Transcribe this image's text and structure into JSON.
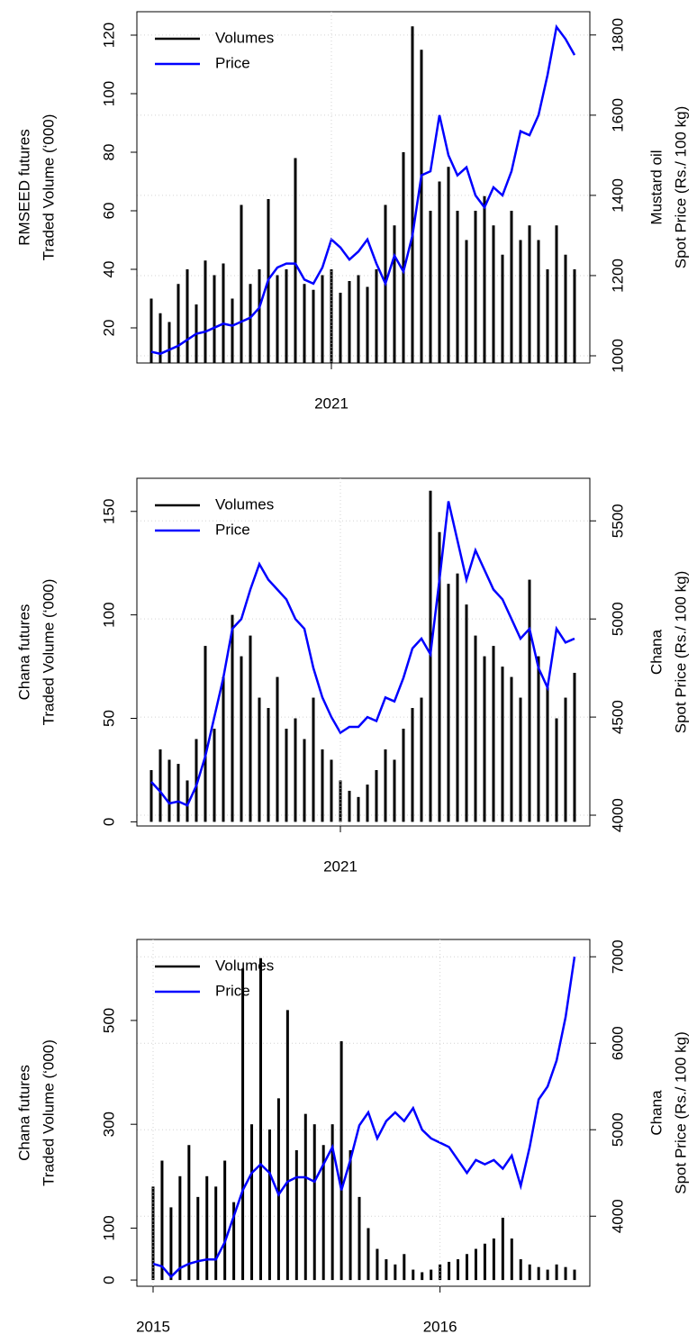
{
  "chart_data": [
    {
      "type": "bar-line",
      "y_label": [
        "RMSEED futures",
        "Traded Volume (‘000)"
      ],
      "y2_label": [
        "Mustard oil",
        "Spot Price (Rs./ 100 kg)"
      ],
      "categories": [
        null,
        null,
        null,
        null,
        null,
        null,
        null,
        null,
        null,
        null,
        null,
        null,
        null,
        null,
        null,
        null,
        null,
        null,
        null,
        null,
        "2021",
        null,
        null,
        null,
        null,
        null,
        null,
        null,
        null,
        null,
        null,
        null,
        null,
        null,
        null,
        null,
        null,
        null,
        null,
        null,
        null,
        null,
        null,
        null,
        null,
        null,
        null,
        null
      ],
      "series": [
        {
          "name": "Volumes",
          "color": "#000000",
          "mark": "bar",
          "values": [
            30,
            25,
            22,
            35,
            40,
            28,
            43,
            38,
            42,
            30,
            62,
            35,
            40,
            64,
            38,
            40,
            78,
            35,
            33,
            38,
            40,
            32,
            36,
            38,
            34,
            40,
            62,
            55,
            80,
            123,
            115,
            60,
            70,
            75,
            60,
            50,
            60,
            65,
            55,
            45,
            60,
            50,
            55,
            50,
            40,
            55,
            45,
            40
          ]
        },
        {
          "name": "Price",
          "color": "#0000ff",
          "mark": "line",
          "axis": "y2",
          "values": [
            1010,
            1005,
            1015,
            1025,
            1040,
            1055,
            1060,
            1070,
            1080,
            1075,
            1085,
            1095,
            1120,
            1190,
            1220,
            1230,
            1230,
            1190,
            1180,
            1220,
            1290,
            1270,
            1240,
            1260,
            1290,
            1230,
            1180,
            1250,
            1210,
            1300,
            1450,
            1460,
            1600,
            1500,
            1450,
            1470,
            1400,
            1370,
            1420,
            1400,
            1460,
            1560,
            1550,
            1600,
            1700,
            1820,
            1790,
            1750
          ]
        }
      ],
      "ylim": [
        8,
        128
      ],
      "yticks": [
        20,
        40,
        60,
        80,
        100,
        120
      ],
      "y2lim": [
        982,
        1858
      ],
      "y2ticks": [
        1000,
        1200,
        1400,
        1600,
        1800
      ],
      "grid": true,
      "legend": "top-left"
    },
    {
      "type": "bar-line",
      "y_label": [
        "Chana futures",
        "Traded Volume (‘000)"
      ],
      "y2_label": [
        "Chana",
        "Spot Price (Rs./ 100 kg)"
      ],
      "categories": [
        null,
        null,
        null,
        null,
        null,
        null,
        null,
        null,
        null,
        null,
        null,
        null,
        null,
        null,
        null,
        null,
        null,
        null,
        null,
        null,
        null,
        "2021",
        null,
        null,
        null,
        null,
        null,
        null,
        null,
        null,
        null,
        null,
        null,
        null,
        null,
        null,
        null,
        null,
        null,
        null,
        null,
        null,
        null,
        null,
        null,
        null,
        null,
        null
      ],
      "series": [
        {
          "name": "Volumes",
          "color": "#000000",
          "mark": "bar",
          "values": [
            25,
            35,
            30,
            28,
            20,
            40,
            85,
            45,
            70,
            100,
            80,
            90,
            60,
            55,
            70,
            45,
            50,
            40,
            60,
            35,
            30,
            20,
            15,
            12,
            18,
            25,
            35,
            30,
            45,
            55,
            60,
            160,
            140,
            115,
            120,
            105,
            90,
            80,
            85,
            75,
            70,
            60,
            117,
            80,
            65,
            50,
            60,
            72
          ]
        },
        {
          "name": "Price",
          "color": "#0000ff",
          "mark": "line",
          "axis": "y2",
          "values": [
            4170,
            4120,
            4060,
            4070,
            4050,
            4150,
            4300,
            4500,
            4700,
            4950,
            5000,
            5150,
            5280,
            5200,
            5150,
            5100,
            5000,
            4950,
            4750,
            4600,
            4500,
            4420,
            4450,
            4450,
            4500,
            4480,
            4600,
            4580,
            4700,
            4850,
            4900,
            4820,
            5200,
            5600,
            5400,
            5200,
            5350,
            5250,
            5150,
            5100,
            5000,
            4900,
            4950,
            4750,
            4650,
            4950,
            4880,
            4900
          ]
        }
      ],
      "ylim": [
        -2,
        166
      ],
      "yticks": [
        0,
        50,
        100,
        150
      ],
      "y2lim": [
        3945,
        5717
      ],
      "y2ticks": [
        4000,
        4500,
        5000,
        5500
      ],
      "grid": true,
      "legend": "top-left"
    },
    {
      "type": "bar-line",
      "y_label": [
        "Chana futures",
        "Traded Volume (‘000)"
      ],
      "y2_label": [
        "Chana",
        "Spot Price (Rs./ 100 kg)"
      ],
      "categories": [
        "2015",
        null,
        null,
        null,
        null,
        null,
        null,
        null,
        null,
        null,
        null,
        null,
        null,
        null,
        null,
        null,
        null,
        null,
        null,
        null,
        null,
        null,
        null,
        null,
        null,
        null,
        null,
        null,
        null,
        null,
        null,
        null,
        "2016",
        null,
        null,
        null,
        null,
        null,
        null,
        null,
        null,
        null,
        null,
        null,
        null,
        null,
        null,
        null
      ],
      "series": [
        {
          "name": "Volumes",
          "color": "#000000",
          "mark": "bar",
          "values": [
            180,
            230,
            140,
            200,
            260,
            160,
            200,
            180,
            230,
            150,
            600,
            300,
            620,
            290,
            350,
            520,
            250,
            320,
            300,
            260,
            300,
            460,
            250,
            160,
            100,
            60,
            40,
            30,
            50,
            20,
            15,
            20,
            30,
            35,
            40,
            50,
            60,
            70,
            80,
            120,
            80,
            40,
            30,
            25,
            20,
            30,
            25,
            20
          ]
        },
        {
          "name": "Price",
          "color": "#0000ff",
          "mark": "line",
          "axis": "y2",
          "values": [
            3450,
            3420,
            3300,
            3400,
            3450,
            3480,
            3500,
            3500,
            3700,
            4000,
            4300,
            4500,
            4600,
            4500,
            4250,
            4400,
            4450,
            4450,
            4400,
            4600,
            4800,
            4300,
            4650,
            5050,
            5200,
            4900,
            5100,
            5200,
            5100,
            5250,
            5000,
            4900,
            4850,
            4800,
            4650,
            4500,
            4650,
            4600,
            4650,
            4550,
            4700,
            4350,
            4800,
            5350,
            5500,
            5800,
            6300,
            7000
          ]
        }
      ],
      "ylim": [
        -12,
        656
      ],
      "yticks": [
        0,
        100,
        300,
        500
      ],
      "y2lim": [
        3190,
        7200
      ],
      "y2ticks": [
        4000,
        5000,
        6000,
        7000
      ],
      "grid": true,
      "legend": "top-left"
    }
  ]
}
